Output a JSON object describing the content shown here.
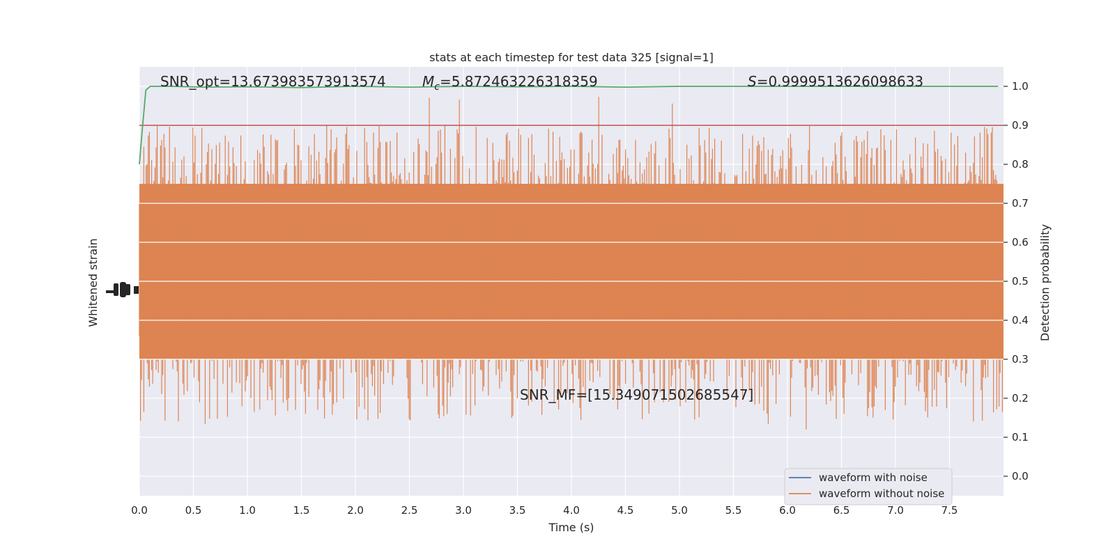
{
  "chart_data": {
    "type": "line",
    "title": "stats at each timestep for test data 325 [signal=1]",
    "xlabel": "Time (s)",
    "ylabel_left": "Whitened strain",
    "ylabel_right": "Detection probability",
    "xlim": [
      0.0,
      8.0
    ],
    "ylim_right": [
      -0.05,
      1.05
    ],
    "xticks": [
      "0.0",
      "0.5",
      "1.0",
      "1.5",
      "2.0",
      "2.5",
      "3.0",
      "3.5",
      "4.0",
      "4.5",
      "5.0",
      "5.5",
      "6.0",
      "6.5",
      "7.0",
      "7.5"
    ],
    "yticks_right": [
      "0.0",
      "0.1",
      "0.2",
      "0.3",
      "0.4",
      "0.5",
      "0.6",
      "0.7",
      "0.8",
      "0.9",
      "1.0"
    ],
    "grid": true,
    "legend_position": "lower-right",
    "colors": {
      "plot_bg": "#eaeaf2",
      "grid": "#ffffff",
      "with_noise": "#4c72b0",
      "without_noise": "#dd8452",
      "probability": "#55a868",
      "threshold": "#c44e52",
      "text": "#262626"
    },
    "series": [
      {
        "name": "waveform with noise",
        "style": "line",
        "color": "#4c72b0"
      },
      {
        "name": "waveform without noise",
        "style": "dense-oscillation",
        "color": "#dd8452",
        "approx_envelope_right_axis": [
          0.3,
          0.75
        ]
      },
      {
        "name": "",
        "role": "detection-probability",
        "color": "#55a868",
        "x": [
          0.0,
          0.03,
          0.06,
          0.1,
          0.15,
          0.3,
          0.6,
          1.0,
          1.5,
          2.0,
          2.5,
          3.0,
          3.5,
          4.0,
          4.5,
          5.0,
          5.5,
          6.0,
          6.5,
          7.0,
          7.5,
          7.95
        ],
        "y": [
          0.8,
          0.9,
          0.99,
          1.0,
          1.0,
          1.0,
          0.998,
          0.999,
          0.997,
          1.0,
          0.998,
          1.0,
          0.999,
          1.0,
          0.998,
          1.0,
          1.0,
          1.0,
          1.0,
          1.0,
          1.0,
          1.0
        ]
      },
      {
        "name": "",
        "role": "threshold",
        "color": "#c44e52",
        "y_constant": 0.9
      }
    ],
    "annotations": {
      "snr_opt": "SNR_opt=13.673983573913574",
      "mc_symbol": "M",
      "mc_subscript": "c",
      "mc_value": "=5.872463226318359",
      "s_symbol": "S",
      "s_value": "=0.9999513626098633",
      "snr_mf": "SNR_MF=[15.349071502685547]"
    }
  }
}
